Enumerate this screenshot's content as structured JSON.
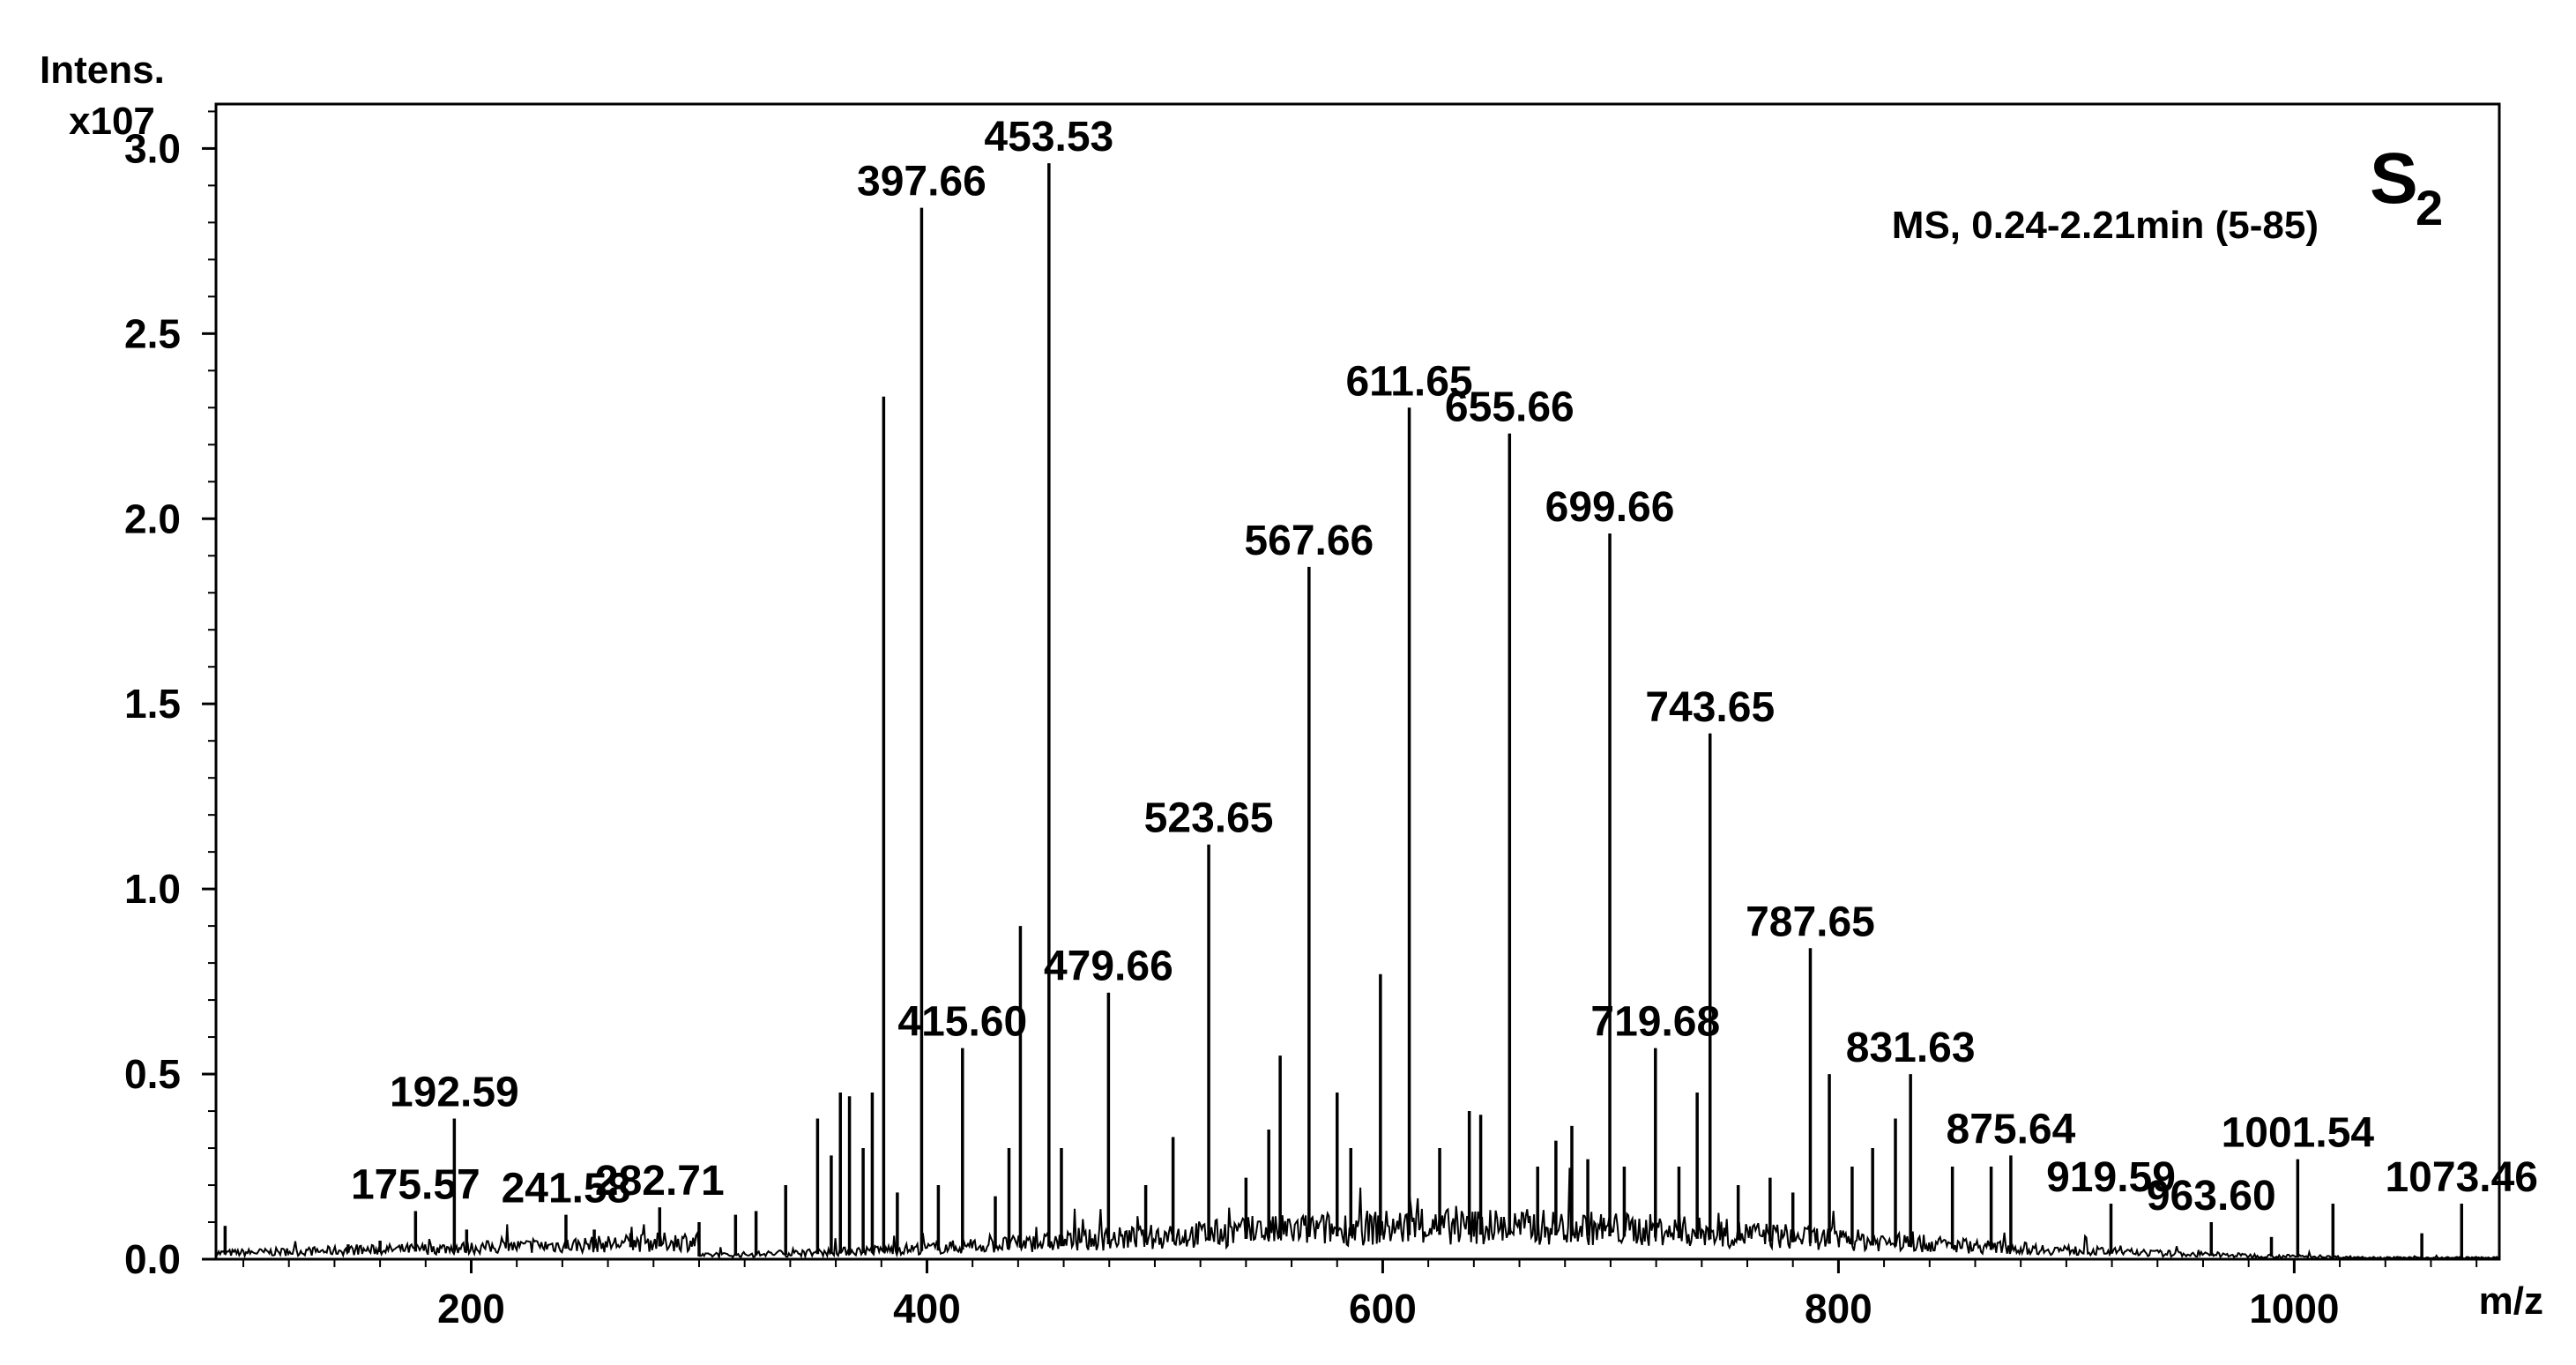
{
  "chart_data": {
    "type": "line",
    "sample_label": {
      "main": "S",
      "subscript": "2"
    },
    "annotation": "MS, 0.24-2.21min (5-85)",
    "ylabel": "Intens.",
    "y_multiplier": "x107",
    "xlabel": "m/z",
    "xlim": [
      88,
      1090
    ],
    "ylim": [
      0,
      3.12
    ],
    "x_ticks": [
      200,
      400,
      600,
      800,
      1000
    ],
    "x_tick_labels": [
      "200",
      "400",
      "600",
      "800",
      "1000"
    ],
    "y_ticks": [
      0,
      0.5,
      1.0,
      1.5,
      2.0,
      2.5,
      3.0
    ],
    "y_tick_labels": [
      "0.0",
      "0.5",
      "1.0",
      "1.5",
      "2.0",
      "2.5",
      "3.0"
    ],
    "line_color": "#000000",
    "peaks": [
      {
        "x": 92,
        "y": 0.09
      },
      {
        "x": 146,
        "y": 0.04
      },
      {
        "x": 160,
        "y": 0.05
      },
      {
        "x": 175.57,
        "y": 0.13,
        "label": "175.57"
      },
      {
        "x": 192.59,
        "y": 0.38,
        "label": "192.59"
      },
      {
        "x": 198,
        "y": 0.08
      },
      {
        "x": 241.58,
        "y": 0.12,
        "label": "241.58"
      },
      {
        "x": 254,
        "y": 0.08
      },
      {
        "x": 270,
        "y": 0.07
      },
      {
        "x": 282.71,
        "y": 0.14,
        "label": "282.71"
      },
      {
        "x": 300,
        "y": 0.1
      },
      {
        "x": 316,
        "y": 0.12
      },
      {
        "x": 325,
        "y": 0.13
      },
      {
        "x": 338,
        "y": 0.2
      },
      {
        "x": 352,
        "y": 0.38
      },
      {
        "x": 358,
        "y": 0.28
      },
      {
        "x": 362,
        "y": 0.45
      },
      {
        "x": 366,
        "y": 0.44
      },
      {
        "x": 372,
        "y": 0.3
      },
      {
        "x": 376,
        "y": 0.45
      },
      {
        "x": 381,
        "y": 2.33
      },
      {
        "x": 387,
        "y": 0.18
      },
      {
        "x": 397.66,
        "y": 2.84,
        "label": "397.66"
      },
      {
        "x": 405,
        "y": 0.2
      },
      {
        "x": 415.6,
        "y": 0.57,
        "label": "415.60"
      },
      {
        "x": 430,
        "y": 0.17
      },
      {
        "x": 436,
        "y": 0.3
      },
      {
        "x": 441,
        "y": 0.9
      },
      {
        "x": 453.53,
        "y": 2.96,
        "label": "453.53"
      },
      {
        "x": 459,
        "y": 0.3
      },
      {
        "x": 479.66,
        "y": 0.72,
        "label": "479.66"
      },
      {
        "x": 496,
        "y": 0.2
      },
      {
        "x": 508,
        "y": 0.33
      },
      {
        "x": 523.65,
        "y": 1.12,
        "label": "523.65"
      },
      {
        "x": 540,
        "y": 0.22
      },
      {
        "x": 550,
        "y": 0.35
      },
      {
        "x": 555,
        "y": 0.55
      },
      {
        "x": 567.66,
        "y": 1.87,
        "label": "567.66"
      },
      {
        "x": 580,
        "y": 0.45
      },
      {
        "x": 586,
        "y": 0.3
      },
      {
        "x": 599,
        "y": 0.77
      },
      {
        "x": 611.65,
        "y": 2.3,
        "label": "611.65"
      },
      {
        "x": 625,
        "y": 0.3
      },
      {
        "x": 638,
        "y": 0.4
      },
      {
        "x": 643,
        "y": 0.39
      },
      {
        "x": 655.66,
        "y": 2.23,
        "label": "655.66"
      },
      {
        "x": 668,
        "y": 0.25
      },
      {
        "x": 676,
        "y": 0.32
      },
      {
        "x": 683,
        "y": 0.36
      },
      {
        "x": 690,
        "y": 0.27
      },
      {
        "x": 699.66,
        "y": 1.96,
        "label": "699.66"
      },
      {
        "x": 706,
        "y": 0.25
      },
      {
        "x": 719.68,
        "y": 0.57,
        "label": "719.68"
      },
      {
        "x": 730,
        "y": 0.25
      },
      {
        "x": 738,
        "y": 0.45
      },
      {
        "x": 743.65,
        "y": 1.42,
        "label": "743.65"
      },
      {
        "x": 756,
        "y": 0.2
      },
      {
        "x": 770,
        "y": 0.22
      },
      {
        "x": 780,
        "y": 0.18
      },
      {
        "x": 787.65,
        "y": 0.84,
        "label": "787.65"
      },
      {
        "x": 796,
        "y": 0.5
      },
      {
        "x": 806,
        "y": 0.25
      },
      {
        "x": 815,
        "y": 0.3
      },
      {
        "x": 825,
        "y": 0.38
      },
      {
        "x": 831.63,
        "y": 0.5,
        "label": "831.63"
      },
      {
        "x": 850,
        "y": 0.25
      },
      {
        "x": 867,
        "y": 0.25
      },
      {
        "x": 875.64,
        "y": 0.28,
        "label": "875.64"
      },
      {
        "x": 919.59,
        "y": 0.15,
        "label": "919.59"
      },
      {
        "x": 963.6,
        "y": 0.1,
        "label": "963.60"
      },
      {
        "x": 990,
        "y": 0.06
      },
      {
        "x": 1001.54,
        "y": 0.27,
        "label": "1001.54"
      },
      {
        "x": 1017,
        "y": 0.15
      },
      {
        "x": 1056,
        "y": 0.07
      },
      {
        "x": 1073.46,
        "y": 0.15,
        "label": "1073.46"
      }
    ]
  }
}
